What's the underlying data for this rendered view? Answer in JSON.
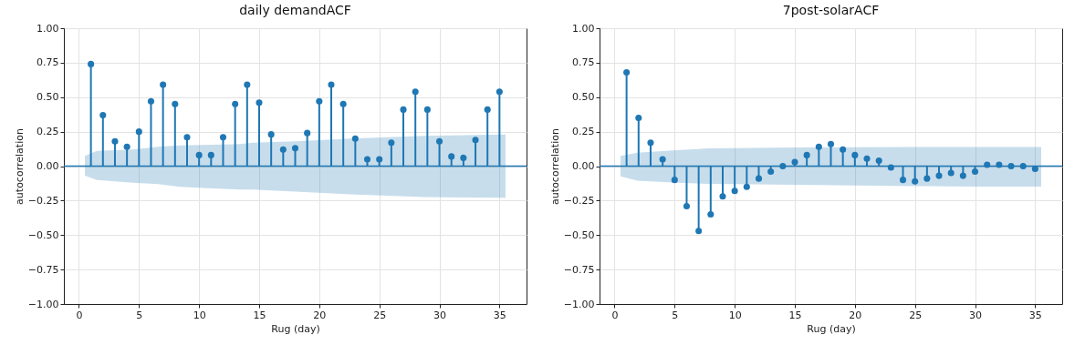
{
  "chart_data": [
    {
      "type": "lollipop",
      "title": "daily demandACF",
      "xlabel": "Rug (day)",
      "ylabel": "autocorrelation",
      "x": [
        1,
        2,
        3,
        4,
        5,
        6,
        7,
        8,
        9,
        10,
        11,
        12,
        13,
        14,
        15,
        16,
        17,
        18,
        19,
        20,
        21,
        22,
        23,
        24,
        25,
        26,
        27,
        28,
        29,
        30,
        31,
        32,
        33,
        34,
        35
      ],
      "xlim": [
        -1.25,
        37.25
      ],
      "xticks": [
        0,
        5,
        10,
        15,
        20,
        25,
        30,
        35
      ],
      "ylim": [
        -1,
        1
      ],
      "yticks": [
        {
          "value": -1,
          "label": "−1.00"
        },
        {
          "value": -0.75,
          "label": "−0.75"
        },
        {
          "value": -0.5,
          "label": "−0.50"
        },
        {
          "value": -0.25,
          "label": "−0.25"
        },
        {
          "value": 0,
          "label": "0.00"
        },
        {
          "value": 0.25,
          "label": "0.25"
        },
        {
          "value": 0.5,
          "label": "0.50"
        },
        {
          "value": 0.75,
          "label": "0.75"
        },
        {
          "value": 1,
          "label": "1.00"
        }
      ],
      "grid": true,
      "marker": "circle",
      "series": [
        {
          "type": "line",
          "color": "#1f77b4",
          "marker": "none",
          "x": [
            -1.25,
            0.5,
            1.5,
            4.5,
            6.6,
            8.4,
            13.4,
            14.5,
            18,
            22.6,
            28.8,
            35.5,
            37.25
          ],
          "values": [
            0,
            0,
            0,
            0,
            0,
            0,
            0,
            0,
            0,
            0,
            0,
            0,
            0
          ],
          "lower": [
            null,
            -0.07,
            -0.1,
            -0.12,
            -0.13,
            -0.15,
            -0.17,
            -0.17,
            -0.185,
            -0.205,
            -0.225,
            -0.23,
            null
          ],
          "upper": [
            null,
            0.075,
            0.11,
            0.12,
            0.14,
            0.15,
            0.16,
            0.17,
            0.18,
            0.2,
            0.22,
            0.23,
            null
          ]
        },
        {
          "color": "#1f77b4",
          "values": [
            0.74,
            0.37,
            0.18,
            0.14,
            0.25,
            0.47,
            0.59,
            0.45,
            0.21,
            0.08,
            0.08,
            0.21,
            0.45,
            0.59,
            0.46,
            0.23,
            0.12,
            0.13,
            0.24,
            0.47,
            0.59,
            0.45,
            0.2,
            0.05,
            0.05,
            0.17,
            0.41,
            0.54,
            0.41,
            0.18,
            0.07,
            0.06,
            0.19,
            0.41,
            0.54
          ]
        }
      ]
    },
    {
      "type": "lollipop",
      "title": "7post-solarACF",
      "xlabel": "Rug (day)",
      "ylabel": "autocorrelation",
      "x": [
        1,
        2,
        3,
        4,
        5,
        6,
        7,
        8,
        9,
        10,
        11,
        12,
        13,
        14,
        15,
        16,
        17,
        18,
        19,
        20,
        21,
        22,
        23,
        24,
        25,
        26,
        27,
        28,
        29,
        30,
        31,
        32,
        33,
        34,
        35
      ],
      "xlim": [
        -1.25,
        37.25
      ],
      "xticks": [
        0,
        5,
        10,
        15,
        20,
        25,
        30,
        35
      ],
      "ylim": [
        -1,
        1
      ],
      "yticks": [
        {
          "value": -1,
          "label": "−1.00"
        },
        {
          "value": -0.75,
          "label": "−0.75"
        },
        {
          "value": -0.5,
          "label": "−0.50"
        },
        {
          "value": -0.25,
          "label": "−0.25"
        },
        {
          "value": 0,
          "label": "0.00"
        },
        {
          "value": 0.25,
          "label": "0.25"
        },
        {
          "value": 0.5,
          "label": "0.50"
        },
        {
          "value": 0.75,
          "label": "0.75"
        },
        {
          "value": 1,
          "label": "1.00"
        }
      ],
      "grid": true,
      "marker": "circle",
      "series": [
        {
          "type": "line",
          "color": "#1f77b4",
          "marker": "none",
          "x": [
            -1.25,
            0.5,
            1.9,
            5.2,
            7.7,
            10,
            15,
            20,
            25,
            30,
            35.5,
            37.25
          ],
          "values": [
            0,
            0,
            0,
            0,
            0,
            0,
            0,
            0,
            0,
            0,
            0,
            0
          ],
          "lower": [
            null,
            -0.075,
            -0.105,
            -0.12,
            -0.128,
            -0.13,
            -0.135,
            -0.14,
            -0.145,
            -0.148,
            -0.148,
            null
          ],
          "upper": [
            null,
            0.075,
            0.097,
            0.115,
            0.128,
            0.13,
            0.135,
            0.137,
            0.139,
            0.139,
            0.139,
            null
          ]
        },
        {
          "color": "#1f77b4",
          "values": [
            0.68,
            0.35,
            0.17,
            0.05,
            -0.1,
            -0.29,
            -0.47,
            -0.35,
            -0.22,
            -0.18,
            -0.15,
            -0.09,
            -0.04,
            0.0,
            0.03,
            0.08,
            0.14,
            0.16,
            0.12,
            0.08,
            0.055,
            0.04,
            -0.01,
            -0.1,
            -0.11,
            -0.09,
            -0.07,
            -0.05,
            -0.07,
            -0.04,
            0.01,
            0.01,
            0.0,
            0.0,
            -0.02
          ]
        }
      ]
    }
  ]
}
